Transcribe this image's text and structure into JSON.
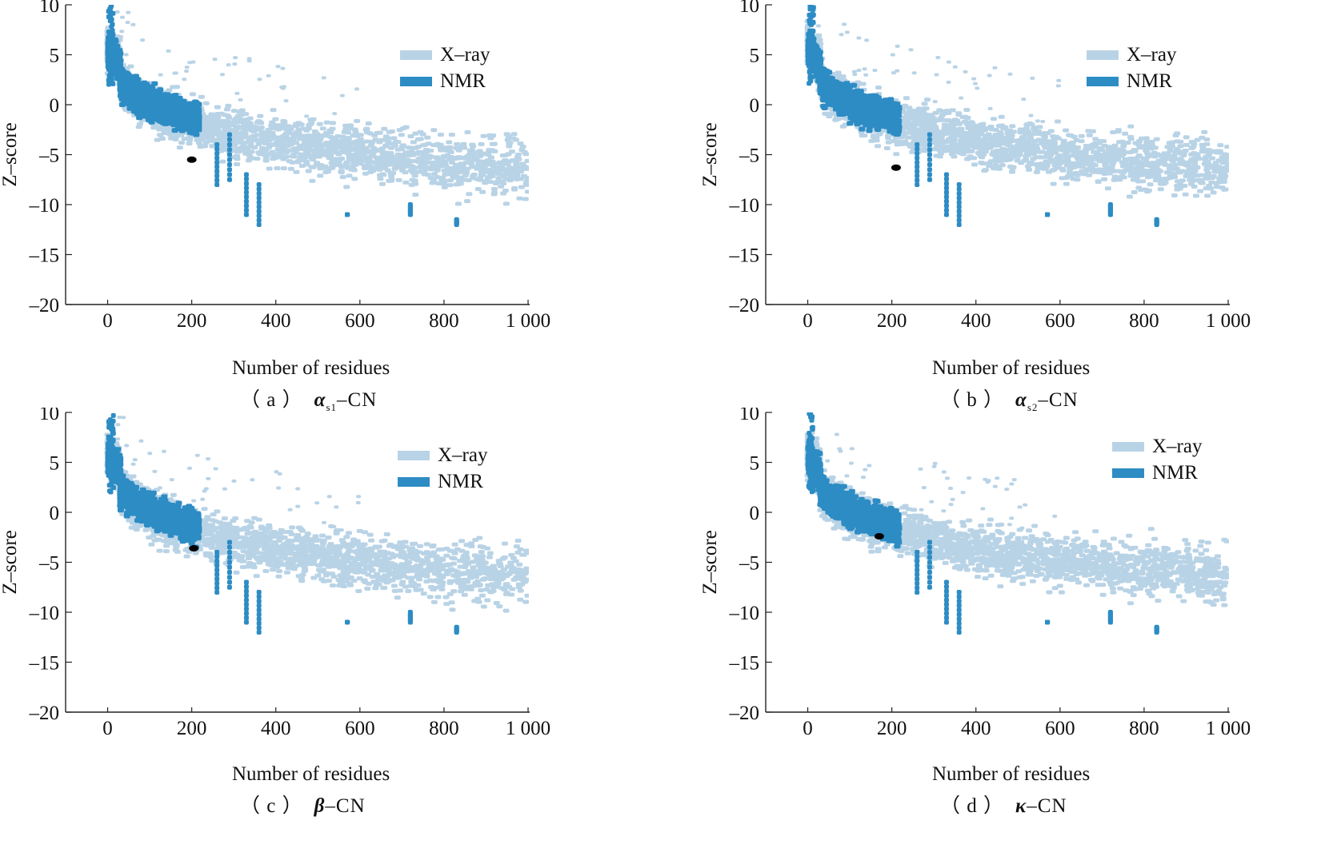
{
  "colors": {
    "xray": "#b9d3e6",
    "nmr": "#2d8cc4",
    "marker": "#000000"
  },
  "panels": [
    {
      "caption_prefix": "（ a ）",
      "caption_symbol": "α",
      "caption_sub": "s1",
      "caption_suffix": "–CN",
      "chart_data": {
        "type": "scatter",
        "title": "",
        "xlabel": "Number of residues",
        "ylabel": "Z–score",
        "xlim": [
          -100,
          1000
        ],
        "ylim": [
          -20,
          10
        ],
        "xticks": [
          0,
          200,
          400,
          600,
          800,
          1000
        ],
        "xtick_labels": [
          "0",
          "200",
          "400",
          "600",
          "800",
          "1 000"
        ],
        "yticks": [
          10,
          5,
          0,
          -5,
          -10,
          -15,
          -20
        ],
        "ytick_labels": [
          "10",
          "5",
          "0",
          "–5",
          "–10",
          "–15",
          "–20"
        ],
        "legend": [
          "X–ray",
          "NMR"
        ],
        "legend_position": "top-right",
        "series": [
          {
            "name": "X–ray",
            "description": "dense cloud of PDB X-ray structures"
          },
          {
            "name": "NMR",
            "description": "dense cloud of PDB NMR structures"
          },
          {
            "name": "query",
            "x": 200,
            "y": -5.5
          }
        ]
      }
    },
    {
      "caption_prefix": "（ b ）",
      "caption_symbol": "α",
      "caption_sub": "s2",
      "caption_suffix": "–CN",
      "chart_data": {
        "type": "scatter",
        "title": "",
        "xlabel": "Number of residues",
        "ylabel": "Z–score",
        "xlim": [
          -100,
          1000
        ],
        "ylim": [
          -20,
          10
        ],
        "xticks": [
          0,
          200,
          400,
          600,
          800,
          1000
        ],
        "xtick_labels": [
          "0",
          "200",
          "400",
          "600",
          "800",
          "1 000"
        ],
        "yticks": [
          10,
          5,
          0,
          -5,
          -10,
          -15,
          -20
        ],
        "ytick_labels": [
          "10",
          "5",
          "0",
          "–5",
          "–10",
          "–15",
          "–20"
        ],
        "legend": [
          "X–ray",
          "NMR"
        ],
        "legend_position": "top-right",
        "series": [
          {
            "name": "X–ray",
            "description": "dense cloud of PDB X-ray structures"
          },
          {
            "name": "NMR",
            "description": "dense cloud of PDB NMR structures"
          },
          {
            "name": "query",
            "x": 210,
            "y": -6.3
          }
        ]
      }
    },
    {
      "caption_prefix": "（ c ）",
      "caption_symbol": "β",
      "caption_sub": "",
      "caption_suffix": "–CN",
      "chart_data": {
        "type": "scatter",
        "title": "",
        "xlabel": "Number of residues",
        "ylabel": "Z–score",
        "xlim": [
          -100,
          1000
        ],
        "ylim": [
          -20,
          10
        ],
        "xticks": [
          0,
          200,
          400,
          600,
          800,
          1000
        ],
        "xtick_labels": [
          "0",
          "200",
          "400",
          "600",
          "800",
          "1 000"
        ],
        "yticks": [
          10,
          5,
          0,
          -5,
          -10,
          -15,
          -20
        ],
        "ytick_labels": [
          "10",
          "5",
          "0",
          "–5",
          "–10",
          "–15",
          "–20"
        ],
        "legend": [
          "X–ray",
          "NMR"
        ],
        "legend_position": "top-right",
        "series": [
          {
            "name": "X–ray",
            "description": "dense cloud of PDB X-ray structures"
          },
          {
            "name": "NMR",
            "description": "dense cloud of PDB NMR structures"
          },
          {
            "name": "query",
            "x": 205,
            "y": -3.6
          }
        ]
      }
    },
    {
      "caption_prefix": "（ d ）",
      "caption_symbol": "κ",
      "caption_sub": "",
      "caption_suffix": "–CN",
      "chart_data": {
        "type": "scatter",
        "title": "",
        "xlabel": "Number of residues",
        "ylabel": "Z–score",
        "xlim": [
          -100,
          1000
        ],
        "ylim": [
          -20,
          10
        ],
        "xticks": [
          0,
          200,
          400,
          600,
          800,
          1000
        ],
        "xtick_labels": [
          "0",
          "200",
          "400",
          "600",
          "800",
          "1 000"
        ],
        "yticks": [
          10,
          5,
          0,
          -5,
          -10,
          -15,
          -20
        ],
        "ytick_labels": [
          "10",
          "5",
          "0",
          "–5",
          "–10",
          "–15",
          "–20"
        ],
        "legend": [
          "X–ray",
          "NMR"
        ],
        "legend_position": "top-right",
        "series": [
          {
            "name": "X–ray",
            "description": "dense cloud of PDB X-ray structures"
          },
          {
            "name": "NMR",
            "description": "dense cloud of PDB NMR structures"
          },
          {
            "name": "query",
            "x": 170,
            "y": -2.4
          }
        ]
      }
    }
  ]
}
